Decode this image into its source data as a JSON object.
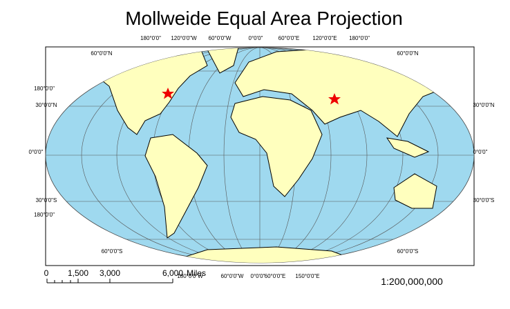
{
  "title": "Mollweide Equal Area Projection",
  "graticule_labels": {
    "top": [
      "180°0'0\"",
      "120°0'0\"W",
      "60°0'0\"W",
      "0°0'0\"",
      "60°0'0\"E",
      "120°0'0\"E",
      "180°0'0\""
    ],
    "left": [
      "60°0'0\"N",
      "180°0'0\"",
      "30°0'0\"N",
      "0°0'0\"",
      "30°0'0\"S",
      "180°0'0\"",
      "60°0'0\"S"
    ],
    "right": [
      "60°0'0\"N",
      "30°0'0\"N",
      "0°0'0\"",
      "30°0'0\"S",
      "60°0'0\"S"
    ],
    "bottom": [
      "180°0'0\"W",
      "60°0'0\"W",
      "0°0'0\"",
      "60°0'0\"E",
      "150°0'0\"E"
    ]
  },
  "scale_bar": {
    "labels": [
      "0",
      "1,500",
      "3,000",
      "6,000"
    ],
    "unit": "Miles"
  },
  "scale_text": "1:200,000,000"
}
